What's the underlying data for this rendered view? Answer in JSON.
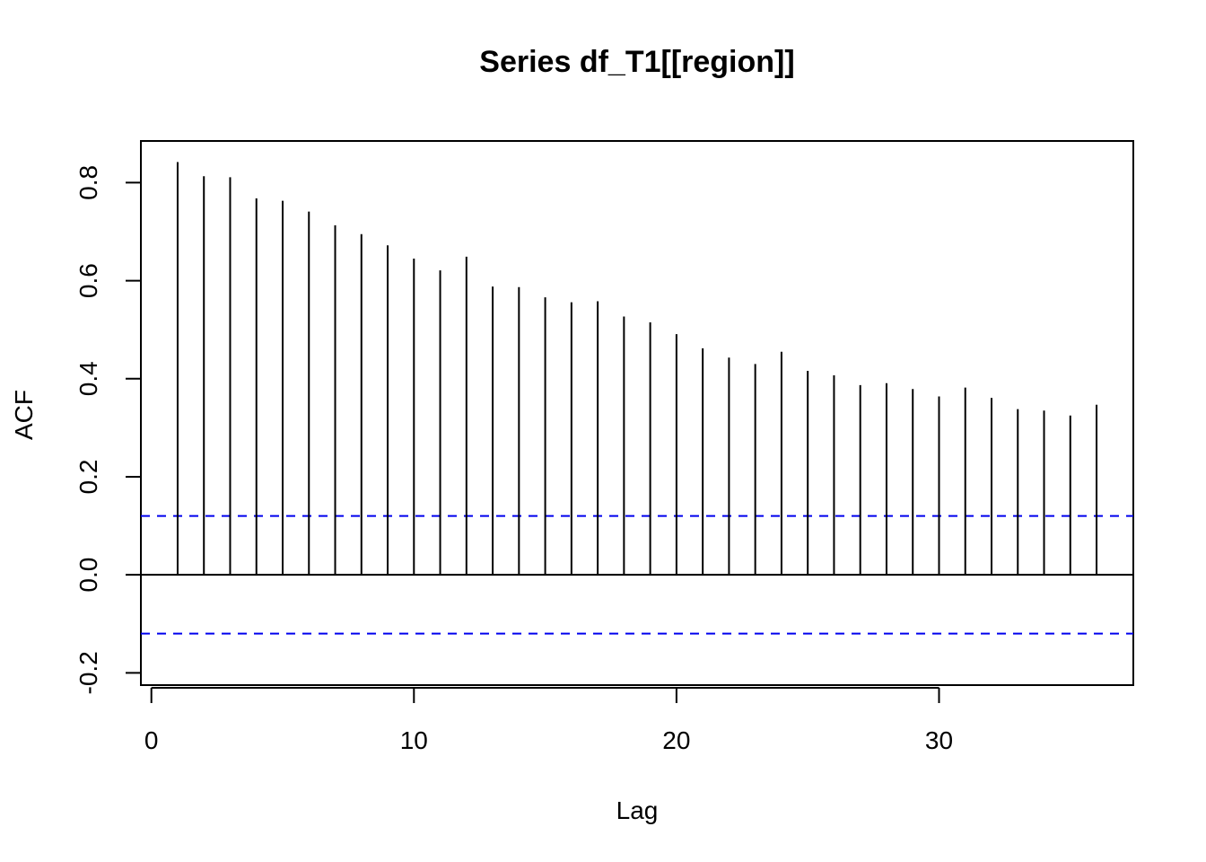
{
  "chart_data": {
    "type": "bar",
    "title": "Series  df_T1[[region]]",
    "xlabel": "Lag",
    "ylabel": "ACF",
    "xlim": [
      -0.4,
      37.4
    ],
    "ylim": [
      -0.225,
      0.885
    ],
    "x_ticks": [
      0,
      10,
      20,
      30
    ],
    "y_ticks": [
      -0.2,
      0.0,
      0.2,
      0.4,
      0.6,
      0.8
    ],
    "x_tick_labels": [
      "0",
      "10",
      "20",
      "30"
    ],
    "y_tick_labels": [
      "-0.2",
      "0.0",
      "0.2",
      "0.4",
      "0.6",
      "0.8"
    ],
    "lags": [
      1,
      2,
      3,
      4,
      5,
      6,
      7,
      8,
      9,
      10,
      11,
      12,
      13,
      14,
      15,
      16,
      17,
      18,
      19,
      20,
      21,
      22,
      23,
      24,
      25,
      26,
      27,
      28,
      29,
      30,
      31,
      32,
      33,
      34,
      35,
      36
    ],
    "acf": [
      0.842,
      0.813,
      0.811,
      0.768,
      0.763,
      0.741,
      0.713,
      0.695,
      0.672,
      0.645,
      0.621,
      0.649,
      0.588,
      0.587,
      0.566,
      0.556,
      0.558,
      0.527,
      0.515,
      0.491,
      0.462,
      0.443,
      0.43,
      0.455,
      0.416,
      0.407,
      0.387,
      0.391,
      0.379,
      0.364,
      0.382,
      0.361,
      0.338,
      0.335,
      0.325,
      0.347
    ],
    "confidence_limit": 0.12,
    "zero_line": 0,
    "grid": false,
    "colors": {
      "bars": "#000000",
      "confidence_lines": "#0000ee",
      "frame": "#000000"
    }
  }
}
